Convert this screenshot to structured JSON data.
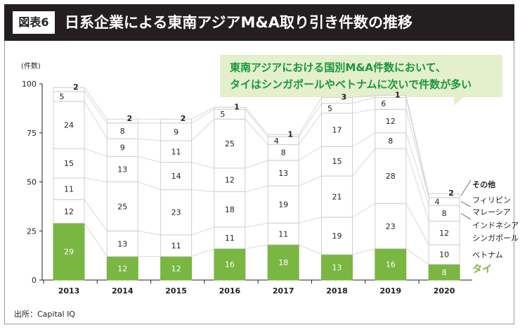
{
  "header": {
    "tag": "図表6",
    "title": "日系企業による東南アジアM&A取り引き件数の推移"
  },
  "callout": {
    "line1": "東南アジアにおける国別M&A件数において、",
    "line2": "タイはシンガポールやベトナムに次いで件数が多い"
  },
  "source": "出所：Capital IQ",
  "colors": {
    "header_bg": "#231f20",
    "thai": "#7ab642",
    "other": "#ffffff",
    "callout_bg": "#e4efcc",
    "callout_text": "#16973e"
  },
  "chart_data": {
    "type": "bar",
    "stacked": true,
    "ylabel": "(件数)",
    "ylim": [
      0,
      100
    ],
    "yticks": [
      0,
      25,
      50,
      75,
      100
    ],
    "categories": [
      "2013",
      "2014",
      "2015",
      "2016",
      "2017",
      "2018",
      "2019",
      "2020"
    ],
    "series": [
      {
        "name": "タイ",
        "values": [
          29,
          12,
          12,
          16,
          18,
          13,
          16,
          8
        ]
      },
      {
        "name": "ベトナム",
        "values": [
          12,
          13,
          11,
          11,
          11,
          19,
          23,
          10
        ]
      },
      {
        "name": "シンガポール",
        "values": [
          11,
          25,
          23,
          18,
          19,
          21,
          28,
          12
        ]
      },
      {
        "name": "インドネシア",
        "values": [
          15,
          13,
          14,
          12,
          13,
          15,
          8,
          8
        ]
      },
      {
        "name": "マレーシア",
        "values": [
          24,
          9,
          11,
          25,
          8,
          17,
          12,
          4
        ]
      },
      {
        "name": "フィリピン",
        "values": [
          5,
          8,
          9,
          5,
          4,
          5,
          6,
          0
        ]
      },
      {
        "name": "その他",
        "values": [
          2,
          2,
          2,
          1,
          1,
          3,
          1,
          2
        ]
      }
    ],
    "legend_placement": "right",
    "grid": false
  }
}
